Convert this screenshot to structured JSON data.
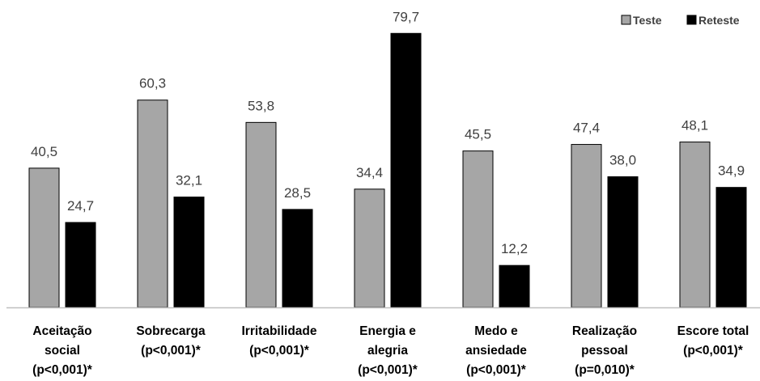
{
  "chart_data": {
    "type": "bar",
    "title": "",
    "xlabel": "",
    "ylabel": "",
    "ylim": [
      0,
      85
    ],
    "grid": false,
    "legend_position": "top-right",
    "categories": [
      [
        "Aceitação",
        "social",
        "(p<0,001)*"
      ],
      [
        "Sobrecarga",
        "(p<0,001)*"
      ],
      [
        "Irritabilidade",
        "(p<0,001)*"
      ],
      [
        "Energia e",
        "alegria",
        "(p<0,001)*"
      ],
      [
        "Medo e",
        "ansiedade",
        "(p<0,001)*"
      ],
      [
        "Realização",
        "pessoal",
        "(p=0,010)*"
      ],
      [
        "Escore total",
        "(p<0,001)*"
      ]
    ],
    "series": [
      {
        "name": "Teste",
        "color": "#a6a6a6",
        "values": [
          40.5,
          60.3,
          53.8,
          34.4,
          45.5,
          47.4,
          48.1
        ],
        "labels": [
          "40,5",
          "60,3",
          "53,8",
          "34,4",
          "45,5",
          "47,4",
          "48,1"
        ]
      },
      {
        "name": "Reteste",
        "color": "#000000",
        "values": [
          24.7,
          32.1,
          28.5,
          79.7,
          12.2,
          38.0,
          34.9
        ],
        "labels": [
          "24,7",
          "32,1",
          "28,5",
          "79,7",
          "12,2",
          "38,0",
          "34,9"
        ]
      }
    ]
  }
}
